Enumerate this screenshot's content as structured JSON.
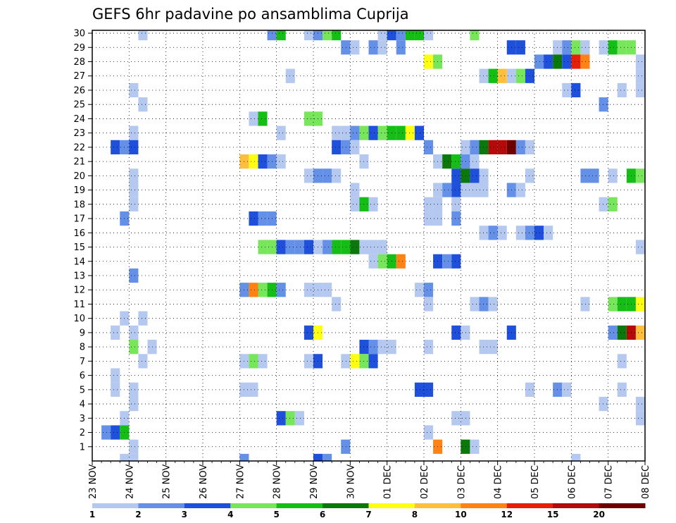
{
  "chart_data": {
    "type": "heatmap",
    "title": "GEFS 6hr padavine po ansamblima Cuprija",
    "x_labels": [
      "23 NOV",
      "24 NOV",
      "25 NOV",
      "26 NOV",
      "27 NOV",
      "28 NOV",
      "29 NOV",
      "30 NOV",
      "01 DEC",
      "02 DEC",
      "03 DEC",
      "04 DEC",
      "05 DEC",
      "06 DEC",
      "07 DEC",
      "08 DEC"
    ],
    "x_range": [
      0,
      60
    ],
    "steps_per_day": 4,
    "y_labels": [
      1,
      2,
      3,
      4,
      5,
      6,
      7,
      8,
      9,
      10,
      11,
      12,
      13,
      14,
      15,
      16,
      17,
      18,
      19,
      20,
      21,
      22,
      23,
      24,
      25,
      26,
      27,
      28,
      29,
      30
    ],
    "y_range": [
      0,
      30.2
    ],
    "grid": true,
    "colorbar": {
      "labels": [
        "1",
        "2",
        "3",
        "4",
        "5",
        "6",
        "7",
        "8",
        "10",
        "12",
        "15",
        "20"
      ],
      "colors": [
        "#b4c8f0",
        "#6490e8",
        "#1e50dc",
        "#78e65a",
        "#14be14",
        "#0a780a",
        "#ffff14",
        "#ffbe3c",
        "#ff8214",
        "#e61e0a",
        "#b40a0a",
        "#6e0000"
      ]
    },
    "cells": [
      [
        30,
        4,
        0
      ],
      [
        30,
        5,
        0
      ],
      [
        30,
        30,
        1
      ],
      [
        30,
        31,
        0
      ],
      [
        30,
        33,
        0
      ],
      [
        29,
        5,
        0
      ],
      [
        29,
        19,
        1
      ],
      [
        29,
        20,
        4
      ],
      [
        29,
        23,
        0
      ],
      [
        29,
        24,
        1
      ],
      [
        29,
        25,
        3
      ],
      [
        29,
        26,
        4
      ],
      [
        29,
        31,
        0
      ],
      [
        29,
        32,
        2
      ],
      [
        29,
        33,
        1
      ],
      [
        29,
        34,
        4
      ],
      [
        29,
        35,
        4
      ],
      [
        29,
        36,
        0
      ],
      [
        29,
        41,
        3
      ],
      [
        28,
        27,
        1
      ],
      [
        28,
        28,
        0
      ],
      [
        28,
        30,
        1
      ],
      [
        28,
        31,
        0
      ],
      [
        28,
        33,
        1
      ],
      [
        28,
        45,
        2
      ],
      [
        28,
        46,
        2
      ],
      [
        28,
        50,
        0
      ],
      [
        28,
        51,
        1
      ],
      [
        28,
        52,
        3
      ],
      [
        28,
        53,
        0
      ],
      [
        28,
        55,
        0
      ],
      [
        28,
        56,
        4
      ],
      [
        28,
        57,
        3
      ],
      [
        28,
        58,
        3
      ],
      [
        27,
        36,
        6
      ],
      [
        27,
        37,
        3
      ],
      [
        27,
        48,
        1
      ],
      [
        27,
        49,
        2
      ],
      [
        27,
        50,
        5
      ],
      [
        27,
        51,
        2
      ],
      [
        27,
        52,
        9
      ],
      [
        27,
        53,
        8
      ],
      [
        27,
        59,
        0
      ],
      [
        26,
        21,
        0
      ],
      [
        26,
        42,
        0
      ],
      [
        26,
        43,
        4
      ],
      [
        26,
        44,
        7
      ],
      [
        26,
        45,
        0
      ],
      [
        26,
        46,
        3
      ],
      [
        26,
        47,
        2
      ],
      [
        26,
        59,
        0
      ],
      [
        25,
        4,
        0
      ],
      [
        25,
        51,
        0
      ],
      [
        25,
        52,
        2
      ],
      [
        25,
        57,
        0
      ],
      [
        25,
        59,
        0
      ],
      [
        24,
        5,
        0
      ],
      [
        24,
        55,
        1
      ],
      [
        23,
        17,
        0
      ],
      [
        23,
        18,
        4
      ],
      [
        23,
        23,
        3
      ],
      [
        23,
        24,
        3
      ],
      [
        22,
        4,
        0
      ],
      [
        22,
        20,
        0
      ],
      [
        22,
        26,
        0
      ],
      [
        22,
        27,
        0
      ],
      [
        22,
        28,
        1
      ],
      [
        22,
        29,
        3
      ],
      [
        22,
        30,
        2
      ],
      [
        22,
        31,
        3
      ],
      [
        22,
        32,
        4
      ],
      [
        22,
        33,
        4
      ],
      [
        22,
        34,
        6
      ],
      [
        22,
        35,
        2
      ],
      [
        21,
        2,
        2
      ],
      [
        21,
        3,
        1
      ],
      [
        21,
        4,
        2
      ],
      [
        21,
        26,
        2
      ],
      [
        21,
        27,
        1
      ],
      [
        21,
        28,
        0
      ],
      [
        21,
        36,
        1
      ],
      [
        21,
        40,
        0
      ],
      [
        21,
        41,
        1
      ],
      [
        21,
        42,
        5
      ],
      [
        21,
        43,
        10
      ],
      [
        21,
        44,
        10
      ],
      [
        21,
        45,
        11
      ],
      [
        21,
        46,
        1
      ],
      [
        21,
        47,
        0
      ],
      [
        20,
        16,
        7
      ],
      [
        20,
        17,
        6
      ],
      [
        20,
        18,
        2
      ],
      [
        20,
        19,
        1
      ],
      [
        20,
        20,
        0
      ],
      [
        20,
        29,
        0
      ],
      [
        20,
        37,
        0
      ],
      [
        20,
        38,
        5
      ],
      [
        20,
        39,
        4
      ],
      [
        20,
        40,
        1
      ],
      [
        20,
        41,
        0
      ],
      [
        19,
        4,
        0
      ],
      [
        19,
        23,
        0
      ],
      [
        19,
        24,
        1
      ],
      [
        19,
        25,
        1
      ],
      [
        19,
        26,
        0
      ],
      [
        19,
        39,
        2
      ],
      [
        19,
        40,
        5
      ],
      [
        19,
        41,
        2
      ],
      [
        19,
        42,
        0
      ],
      [
        19,
        47,
        0
      ],
      [
        19,
        53,
        1
      ],
      [
        19,
        54,
        1
      ],
      [
        19,
        56,
        0
      ],
      [
        19,
        58,
        4
      ],
      [
        19,
        59,
        3
      ],
      [
        18,
        4,
        0
      ],
      [
        18,
        28,
        0
      ],
      [
        18,
        37,
        0
      ],
      [
        18,
        38,
        1
      ],
      [
        18,
        39,
        2
      ],
      [
        18,
        40,
        0
      ],
      [
        18,
        41,
        0
      ],
      [
        18,
        42,
        0
      ],
      [
        18,
        45,
        1
      ],
      [
        18,
        46,
        0
      ],
      [
        17,
        4,
        0
      ],
      [
        17,
        28,
        0
      ],
      [
        17,
        29,
        4
      ],
      [
        17,
        30,
        0
      ],
      [
        17,
        36,
        0
      ],
      [
        17,
        37,
        0
      ],
      [
        17,
        39,
        0
      ],
      [
        17,
        55,
        0
      ],
      [
        17,
        56,
        3
      ],
      [
        16,
        3,
        1
      ],
      [
        16,
        17,
        2
      ],
      [
        16,
        18,
        1
      ],
      [
        16,
        19,
        1
      ],
      [
        16,
        36,
        0
      ],
      [
        16,
        37,
        0
      ],
      [
        16,
        39,
        1
      ],
      [
        15,
        42,
        0
      ],
      [
        15,
        43,
        1
      ],
      [
        15,
        44,
        0
      ],
      [
        15,
        46,
        0
      ],
      [
        15,
        47,
        1
      ],
      [
        15,
        48,
        2
      ],
      [
        15,
        49,
        0
      ],
      [
        14,
        18,
        3
      ],
      [
        14,
        19,
        3
      ],
      [
        14,
        20,
        2
      ],
      [
        14,
        21,
        1
      ],
      [
        14,
        22,
        1
      ],
      [
        14,
        23,
        2
      ],
      [
        14,
        24,
        0
      ],
      [
        14,
        25,
        1
      ],
      [
        14,
        26,
        4
      ],
      [
        14,
        27,
        4
      ],
      [
        14,
        28,
        5
      ],
      [
        14,
        29,
        0
      ],
      [
        14,
        30,
        0
      ],
      [
        14,
        31,
        0
      ],
      [
        14,
        59,
        0
      ],
      [
        13,
        30,
        0
      ],
      [
        13,
        31,
        3
      ],
      [
        13,
        32,
        4
      ],
      [
        13,
        33,
        8
      ],
      [
        13,
        37,
        2
      ],
      [
        13,
        38,
        1
      ],
      [
        13,
        39,
        2
      ],
      [
        12,
        4,
        1
      ],
      [
        11,
        16,
        1
      ],
      [
        11,
        17,
        8
      ],
      [
        11,
        18,
        3
      ],
      [
        11,
        19,
        4
      ],
      [
        11,
        20,
        1
      ],
      [
        11,
        23,
        0
      ],
      [
        11,
        24,
        0
      ],
      [
        11,
        25,
        0
      ],
      [
        11,
        35,
        0
      ],
      [
        11,
        36,
        1
      ],
      [
        10,
        26,
        0
      ],
      [
        10,
        36,
        0
      ],
      [
        10,
        41,
        0
      ],
      [
        10,
        42,
        1
      ],
      [
        10,
        43,
        0
      ],
      [
        10,
        53,
        0
      ],
      [
        10,
        56,
        3
      ],
      [
        10,
        57,
        4
      ],
      [
        10,
        58,
        4
      ],
      [
        10,
        59,
        6
      ],
      [
        10,
        60,
        8
      ],
      [
        9,
        3,
        0
      ],
      [
        9,
        5,
        0
      ],
      [
        8,
        2,
        0
      ],
      [
        8,
        4,
        0
      ],
      [
        8,
        23,
        2
      ],
      [
        8,
        24,
        6
      ],
      [
        8,
        39,
        2
      ],
      [
        8,
        40,
        0
      ],
      [
        8,
        45,
        2
      ],
      [
        8,
        56,
        1
      ],
      [
        8,
        57,
        5
      ],
      [
        8,
        58,
        10
      ],
      [
        8,
        59,
        7
      ],
      [
        7,
        4,
        3
      ],
      [
        7,
        6,
        0
      ],
      [
        7,
        29,
        2
      ],
      [
        7,
        30,
        1
      ],
      [
        7,
        31,
        0
      ],
      [
        7,
        32,
        0
      ],
      [
        7,
        36,
        0
      ],
      [
        7,
        42,
        0
      ],
      [
        7,
        43,
        0
      ],
      [
        6,
        5,
        0
      ],
      [
        6,
        16,
        0
      ],
      [
        6,
        17,
        3
      ],
      [
        6,
        18,
        0
      ],
      [
        6,
        23,
        0
      ],
      [
        6,
        24,
        2
      ],
      [
        6,
        27,
        0
      ],
      [
        6,
        28,
        6
      ],
      [
        6,
        29,
        3
      ],
      [
        6,
        30,
        2
      ],
      [
        6,
        57,
        0
      ],
      [
        5,
        2,
        0
      ],
      [
        4,
        2,
        0
      ],
      [
        4,
        4,
        0
      ],
      [
        4,
        16,
        0
      ],
      [
        4,
        17,
        0
      ],
      [
        4,
        35,
        2
      ],
      [
        4,
        36,
        2
      ],
      [
        4,
        47,
        0
      ],
      [
        4,
        50,
        1
      ],
      [
        4,
        51,
        0
      ],
      [
        4,
        57,
        0
      ],
      [
        3,
        4,
        0
      ],
      [
        3,
        55,
        0
      ],
      [
        3,
        59,
        0
      ],
      [
        2,
        3,
        0
      ],
      [
        2,
        20,
        2
      ],
      [
        2,
        21,
        3
      ],
      [
        2,
        22,
        0
      ],
      [
        2,
        39,
        0
      ],
      [
        2,
        40,
        0
      ],
      [
        2,
        59,
        0
      ],
      [
        1,
        1,
        1
      ],
      [
        1,
        2,
        2
      ],
      [
        1,
        3,
        4
      ],
      [
        1,
        36,
        0
      ],
      [
        0,
        4,
        0
      ],
      [
        0,
        27,
        1
      ],
      [
        0,
        37,
        8
      ],
      [
        0,
        40,
        5
      ],
      [
        0,
        41,
        0
      ],
      [
        -1,
        3,
        0
      ],
      [
        -1,
        4,
        0
      ],
      [
        -1,
        16,
        1
      ],
      [
        -1,
        24,
        2
      ],
      [
        -1,
        25,
        1
      ],
      [
        -1,
        52,
        0
      ]
    ]
  }
}
